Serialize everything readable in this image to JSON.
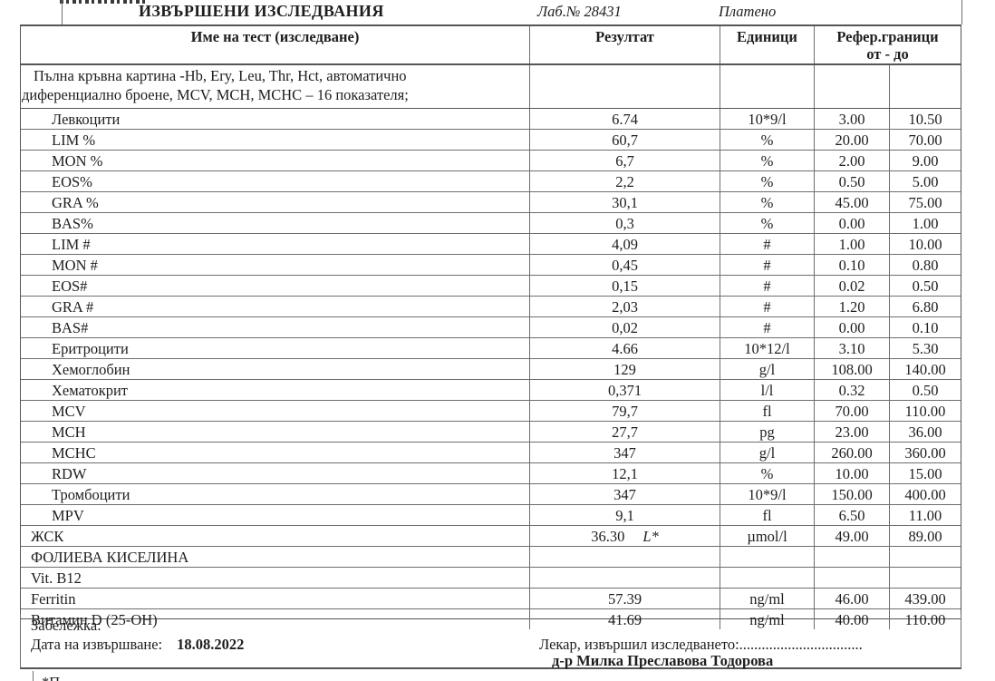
{
  "doc": {
    "title": "ИЗВЪРШЕНИ ИЗСЛЕДВАНИЯ",
    "lab_no": "Лаб.№ 28431",
    "paid_status": "Платено"
  },
  "table": {
    "headers": {
      "name": "Име на тест (изследване)",
      "result": "Резултат",
      "units": "Единици",
      "ref_range": "Рефер.граници",
      "ref_range_sub": "от - до"
    },
    "section_title_line1": "Пълна кръвна картина -Hb, Ery, Leu, Thr, Hct, автоматично",
    "section_title_line2": "диференциално броене, MCV, MCH, MCHC – 16 показателя;",
    "rows": [
      {
        "name": "Левкоцити",
        "indent": true,
        "result": "6.74",
        "flag": "",
        "units": "10*9/l",
        "ref_from": "3.00",
        "ref_to": "10.50"
      },
      {
        "name": "LIM %",
        "indent": true,
        "result": "60,7",
        "flag": "",
        "units": "%",
        "ref_from": "20.00",
        "ref_to": "70.00"
      },
      {
        "name": "MON %",
        "indent": true,
        "result": "6,7",
        "flag": "",
        "units": "%",
        "ref_from": "2.00",
        "ref_to": "9.00"
      },
      {
        "name": "EOS%",
        "indent": true,
        "result": "2,2",
        "flag": "",
        "units": "%",
        "ref_from": "0.50",
        "ref_to": "5.00"
      },
      {
        "name": "GRA %",
        "indent": true,
        "result": "30,1",
        "flag": "",
        "units": "%",
        "ref_from": "45.00",
        "ref_to": "75.00"
      },
      {
        "name": "BAS%",
        "indent": true,
        "result": "0,3",
        "flag": "",
        "units": "%",
        "ref_from": "0.00",
        "ref_to": "1.00"
      },
      {
        "name": "LIM #",
        "indent": true,
        "result": "4,09",
        "flag": "",
        "units": "#",
        "ref_from": "1.00",
        "ref_to": "10.00"
      },
      {
        "name": "MON #",
        "indent": true,
        "result": "0,45",
        "flag": "",
        "units": "#",
        "ref_from": "0.10",
        "ref_to": "0.80"
      },
      {
        "name": "EOS#",
        "indent": true,
        "result": "0,15",
        "flag": "",
        "units": "#",
        "ref_from": "0.02",
        "ref_to": "0.50"
      },
      {
        "name": "GRA #",
        "indent": true,
        "result": "2,03",
        "flag": "",
        "units": "#",
        "ref_from": "1.20",
        "ref_to": "6.80"
      },
      {
        "name": "BAS#",
        "indent": true,
        "result": "0,02",
        "flag": "",
        "units": "#",
        "ref_from": "0.00",
        "ref_to": "0.10"
      },
      {
        "name": "Еритроцити",
        "indent": true,
        "result": "4.66",
        "flag": "",
        "units": "10*12/l",
        "ref_from": "3.10",
        "ref_to": "5.30"
      },
      {
        "name": "Хемоглобин",
        "indent": true,
        "result": "129",
        "flag": "",
        "units": "g/l",
        "ref_from": "108.00",
        "ref_to": "140.00"
      },
      {
        "name": "Хематокрит",
        "indent": true,
        "result": "0,371",
        "flag": "",
        "units": "l/l",
        "ref_from": "0.32",
        "ref_to": "0.50"
      },
      {
        "name": "MCV",
        "indent": true,
        "result": "79,7",
        "flag": "",
        "units": "fl",
        "ref_from": "70.00",
        "ref_to": "110.00"
      },
      {
        "name": "MCH",
        "indent": true,
        "result": "27,7",
        "flag": "",
        "units": "pg",
        "ref_from": "23.00",
        "ref_to": "36.00"
      },
      {
        "name": "MCHC",
        "indent": true,
        "result": "347",
        "flag": "",
        "units": "g/l",
        "ref_from": "260.00",
        "ref_to": "360.00"
      },
      {
        "name": "RDW",
        "indent": true,
        "result": "12,1",
        "flag": "",
        "units": "%",
        "ref_from": "10.00",
        "ref_to": "15.00"
      },
      {
        "name": "Тромбоцити",
        "indent": true,
        "result": "347",
        "flag": "",
        "units": "10*9/l",
        "ref_from": "150.00",
        "ref_to": "400.00"
      },
      {
        "name": "MPV",
        "indent": true,
        "result": "9,1",
        "flag": "",
        "units": "fl",
        "ref_from": "6.50",
        "ref_to": "11.00"
      },
      {
        "name": "ЖСК",
        "indent": false,
        "result": "36.30",
        "flag": "L*",
        "units": "µmol/l",
        "ref_from": "49.00",
        "ref_to": "89.00"
      },
      {
        "name": "ФОЛИЕВА КИСЕЛИНА",
        "indent": false,
        "result": "",
        "flag": "",
        "units": "",
        "ref_from": "",
        "ref_to": ""
      },
      {
        "name": "Vit. B12",
        "indent": false,
        "result": "",
        "flag": "",
        "units": "",
        "ref_from": "",
        "ref_to": ""
      },
      {
        "name": "Ferritin",
        "indent": false,
        "result": "57.39",
        "flag": "",
        "units": "ng/ml",
        "ref_from": "46.00",
        "ref_to": "439.00"
      },
      {
        "name": "Витамин D (25-OH)",
        "indent": false,
        "result": "41.69",
        "flag": "",
        "units": "ng/ml",
        "ref_from": "40.00",
        "ref_to": "110.00"
      }
    ]
  },
  "footer": {
    "note_label": "Забележка:",
    "date_label": "Дата на извършване:",
    "date_value": "18.08.2022",
    "doctor_line": "Лекар, извършил изследването:.................................",
    "doctor_name": "д-р Милка Преславова Тодорова"
  },
  "fragments": {
    "bottom_cutoff": "*П"
  },
  "colors": {
    "border": "#6e6e6e",
    "border_dark": "#555555",
    "text": "#1e1e1e",
    "background": "#ffffff"
  }
}
